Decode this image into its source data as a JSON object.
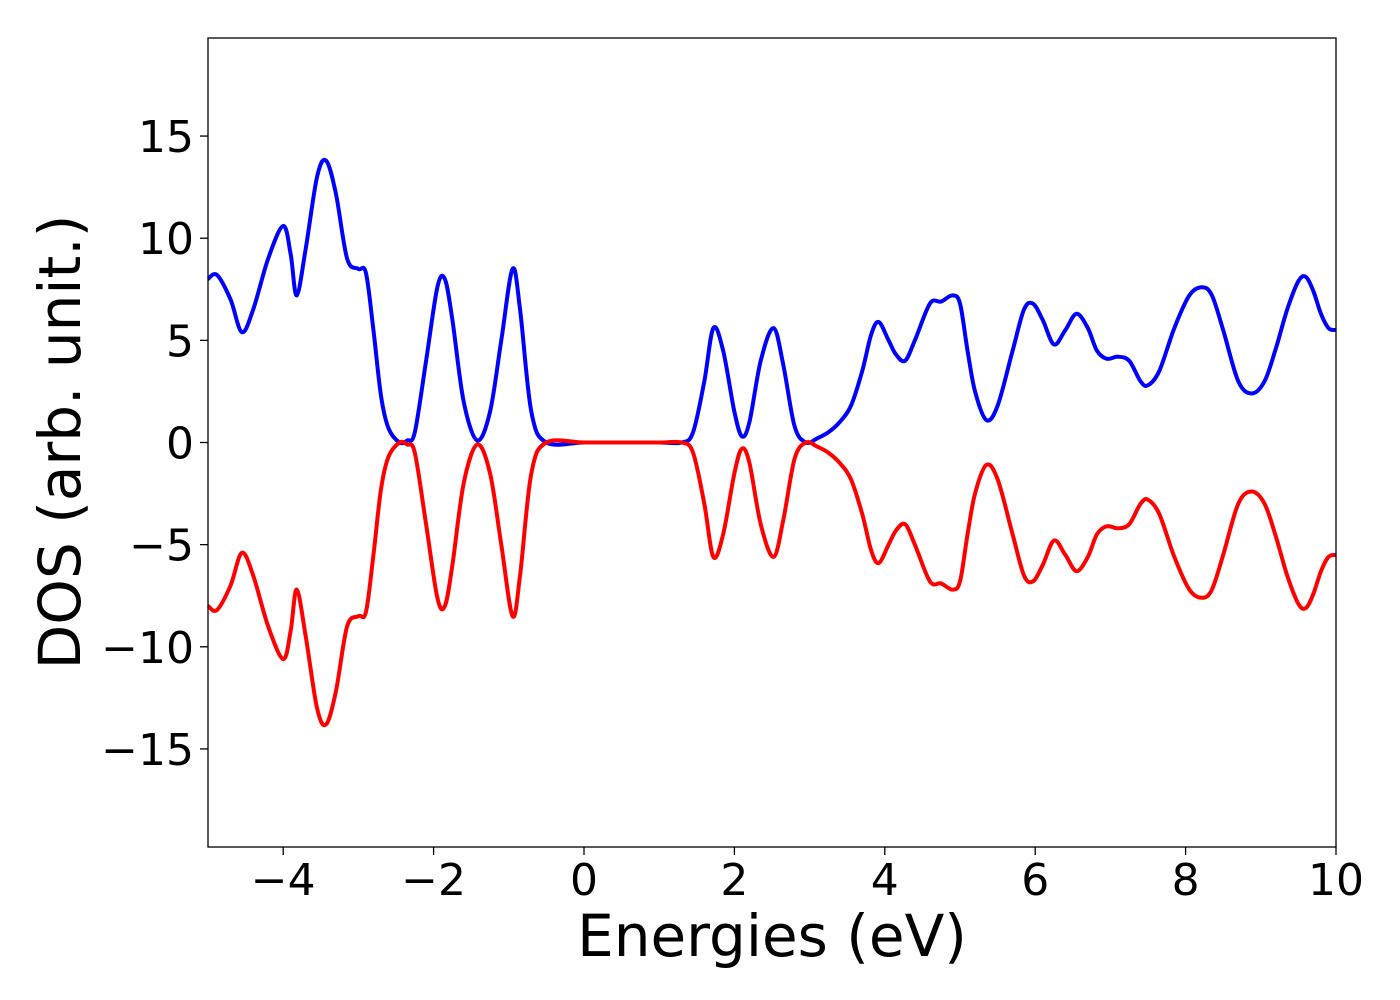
{
  "chart_data": {
    "type": "line",
    "title": "",
    "xlabel": "Energies (eV)",
    "ylabel": "DOS (arb. unit.)",
    "xlim": [
      -5,
      10
    ],
    "ylim": [
      -19.8,
      19.8
    ],
    "grid": false,
    "xticks": [
      -4,
      -2,
      0,
      2,
      4,
      6,
      8,
      10
    ],
    "xtick_labels": [
      "−4",
      "−2",
      "0",
      "2",
      "4",
      "6",
      "8",
      "10"
    ],
    "yticks": [
      -15,
      -10,
      -5,
      0,
      5,
      10,
      15
    ],
    "ytick_labels": [
      "−15",
      "−10",
      "−5",
      "0",
      "5",
      "10",
      "15"
    ],
    "colors": {
      "spin_up": "#0000ff",
      "spin_down": "#ff0000"
    },
    "series": [
      {
        "color": "#0000ff",
        "x": [
          -5.0,
          -4.88,
          -4.7,
          -4.55,
          -4.4,
          -4.2,
          -4.0,
          -3.9,
          -3.82,
          -3.7,
          -3.55,
          -3.43,
          -3.3,
          -3.15,
          -3.0,
          -2.9,
          -2.8,
          -2.7,
          -2.6,
          -2.45,
          -2.35,
          -2.25,
          -2.1,
          -1.95,
          -1.85,
          -1.75,
          -1.6,
          -1.42,
          -1.25,
          -1.1,
          -0.95,
          -0.85,
          -0.7,
          -0.5,
          0.0,
          0.5,
          1.0,
          1.3,
          1.45,
          1.6,
          1.72,
          1.85,
          2.0,
          2.1,
          2.2,
          2.35,
          2.52,
          2.65,
          2.8,
          2.95,
          3.1,
          3.25,
          3.4,
          3.55,
          3.7,
          3.82,
          3.92,
          4.05,
          4.15,
          4.27,
          4.4,
          4.6,
          4.75,
          4.9,
          5.0,
          5.1,
          5.2,
          5.35,
          5.5,
          5.7,
          5.85,
          5.97,
          6.1,
          6.25,
          6.4,
          6.55,
          6.7,
          6.82,
          6.95,
          7.1,
          7.25,
          7.4,
          7.5,
          7.65,
          7.85,
          8.05,
          8.22,
          8.35,
          8.5,
          8.7,
          8.88,
          9.05,
          9.2,
          9.35,
          9.5,
          9.6,
          9.7,
          9.8,
          9.9,
          10.0
        ],
        "y": [
          8.0,
          8.2,
          7.0,
          5.4,
          6.5,
          9.0,
          10.6,
          9.2,
          7.2,
          9.5,
          13.0,
          13.8,
          12.2,
          9.0,
          8.5,
          8.3,
          5.5,
          2.3,
          0.7,
          0.0,
          0.1,
          0.5,
          4.0,
          7.6,
          8.0,
          6.0,
          2.0,
          0.1,
          1.5,
          5.0,
          8.5,
          6.5,
          1.5,
          0.0,
          0.0,
          0.0,
          0.0,
          0.0,
          0.5,
          3.0,
          5.6,
          4.5,
          1.5,
          0.3,
          1.0,
          4.0,
          5.6,
          3.8,
          0.8,
          0.0,
          0.2,
          0.5,
          1.0,
          1.8,
          3.5,
          5.3,
          5.9,
          5.0,
          4.3,
          4.0,
          5.0,
          6.8,
          6.9,
          7.2,
          6.8,
          4.5,
          2.5,
          1.1,
          1.8,
          4.5,
          6.5,
          6.8,
          6.0,
          4.8,
          5.5,
          6.3,
          5.6,
          4.5,
          4.1,
          4.2,
          4.0,
          3.0,
          2.8,
          3.5,
          5.6,
          7.2,
          7.6,
          7.2,
          5.5,
          3.0,
          2.4,
          3.0,
          4.6,
          6.5,
          7.9,
          8.1,
          7.4,
          6.3,
          5.6,
          5.5
        ]
      },
      {
        "color": "#ff0000",
        "x": [
          -5.0,
          -4.88,
          -4.7,
          -4.55,
          -4.4,
          -4.2,
          -4.0,
          -3.9,
          -3.82,
          -3.7,
          -3.55,
          -3.43,
          -3.3,
          -3.15,
          -3.0,
          -2.9,
          -2.8,
          -2.7,
          -2.6,
          -2.45,
          -2.35,
          -2.25,
          -2.1,
          -1.95,
          -1.85,
          -1.75,
          -1.6,
          -1.42,
          -1.25,
          -1.1,
          -0.95,
          -0.85,
          -0.7,
          -0.5,
          0.0,
          0.5,
          1.0,
          1.3,
          1.45,
          1.6,
          1.72,
          1.85,
          2.0,
          2.1,
          2.2,
          2.35,
          2.52,
          2.65,
          2.8,
          2.95,
          3.1,
          3.25,
          3.4,
          3.55,
          3.7,
          3.82,
          3.92,
          4.05,
          4.15,
          4.27,
          4.4,
          4.6,
          4.75,
          4.9,
          5.0,
          5.1,
          5.2,
          5.35,
          5.5,
          5.7,
          5.85,
          5.97,
          6.1,
          6.25,
          6.4,
          6.55,
          6.7,
          6.82,
          6.95,
          7.1,
          7.25,
          7.4,
          7.5,
          7.65,
          7.85,
          8.05,
          8.22,
          8.35,
          8.5,
          8.7,
          8.88,
          9.05,
          9.2,
          9.35,
          9.5,
          9.6,
          9.7,
          9.8,
          9.9,
          10.0
        ],
        "y": [
          -8.0,
          -8.2,
          -7.0,
          -5.4,
          -6.5,
          -9.0,
          -10.6,
          -9.2,
          -7.2,
          -9.5,
          -13.0,
          -13.8,
          -12.2,
          -9.0,
          -8.5,
          -8.3,
          -5.5,
          -2.3,
          -0.7,
          0.0,
          -0.1,
          -0.5,
          -4.0,
          -7.6,
          -8.0,
          -6.0,
          -2.0,
          -0.1,
          -1.5,
          -5.0,
          -8.5,
          -6.5,
          -1.5,
          0.0,
          0.0,
          0.0,
          0.0,
          0.0,
          -0.5,
          -3.0,
          -5.6,
          -4.5,
          -1.5,
          -0.3,
          -1.0,
          -4.0,
          -5.6,
          -3.8,
          -0.8,
          0.0,
          -0.2,
          -0.5,
          -1.0,
          -1.8,
          -3.5,
          -5.3,
          -5.9,
          -5.0,
          -4.3,
          -4.0,
          -5.0,
          -6.8,
          -6.9,
          -7.2,
          -6.8,
          -4.5,
          -2.5,
          -1.1,
          -1.8,
          -4.5,
          -6.5,
          -6.8,
          -6.0,
          -4.8,
          -5.5,
          -6.3,
          -5.6,
          -4.5,
          -4.1,
          -4.2,
          -4.0,
          -3.0,
          -2.8,
          -3.5,
          -5.6,
          -7.2,
          -7.6,
          -7.2,
          -5.5,
          -3.0,
          -2.4,
          -3.0,
          -4.6,
          -6.5,
          -7.9,
          -8.1,
          -7.4,
          -6.3,
          -5.6,
          -5.5
        ]
      }
    ]
  }
}
